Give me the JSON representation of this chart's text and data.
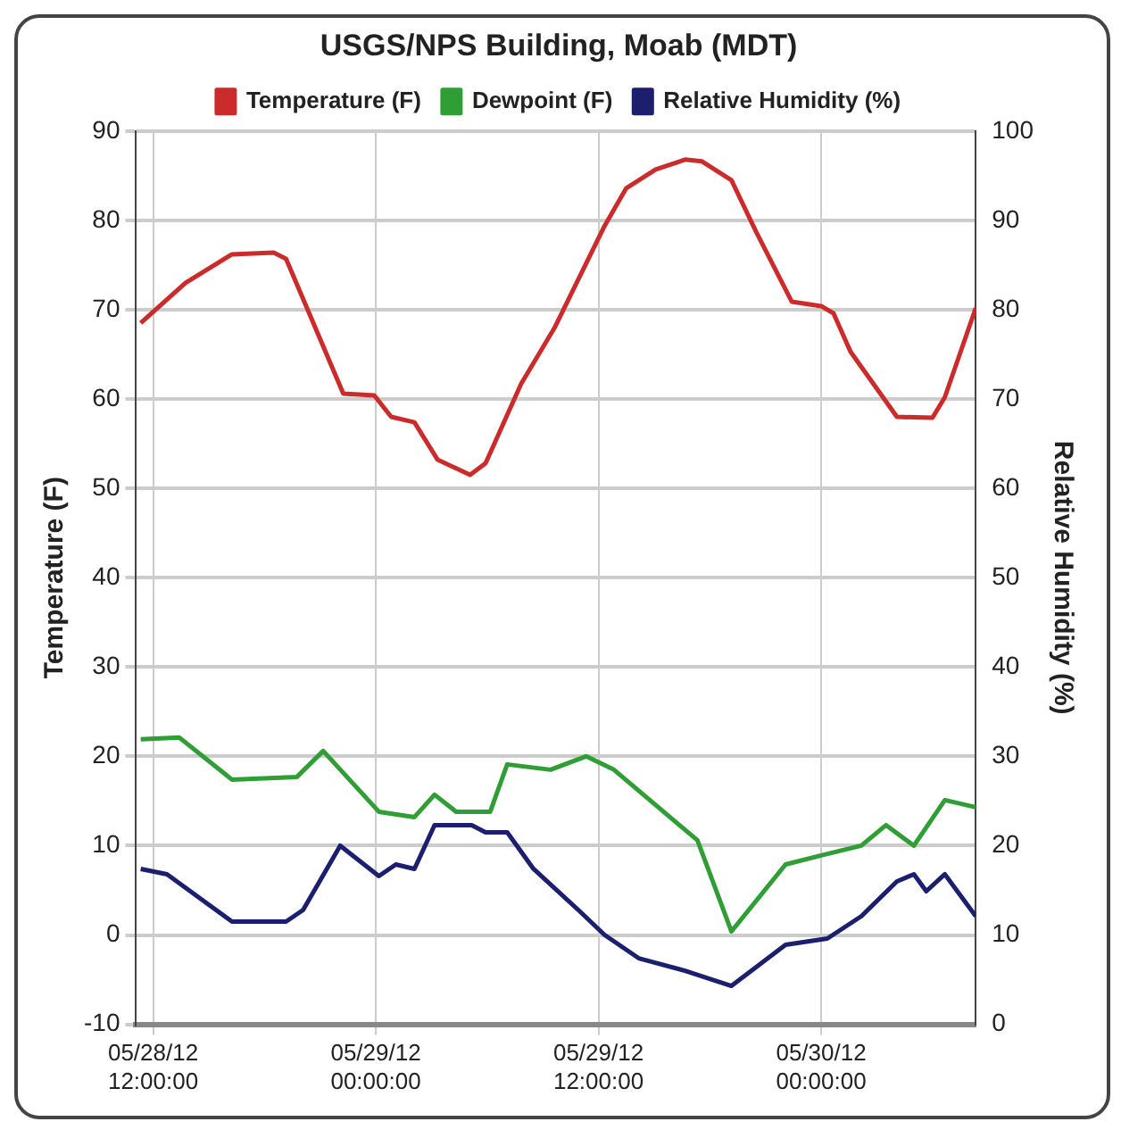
{
  "chart_data": {
    "type": "line",
    "title": "USGS/NPS Building, Moab (MDT)",
    "ylabel": "Temperature (F)",
    "y2label": "Relative Humidity (%)",
    "xlim": [
      "--05-28T11:05",
      "--05-30T08:20"
    ],
    "xticks": [
      {
        "value": "--05-28T12:00",
        "label": "05/28/12 12:00:00"
      },
      {
        "value": "--05-29T00:00",
        "label": "05/29/12 00:00:00"
      },
      {
        "value": "--05-29T12:00",
        "label": "05/29/12 12:00:00"
      },
      {
        "value": "--05-30T00:00",
        "label": "05/30/12 00:00:00"
      }
    ],
    "ylim": [
      -10,
      90
    ],
    "yticks": [
      -10,
      0,
      10,
      20,
      30,
      40,
      50,
      60,
      70,
      80,
      90
    ],
    "y2lim": [
      0,
      100
    ],
    "y2ticks": [
      0,
      10,
      20,
      30,
      40,
      50,
      60,
      70,
      80,
      90,
      100
    ],
    "grid": true,
    "legend": "top",
    "marker": "none",
    "line_style": "solid",
    "series": [
      {
        "name": "Temperature (F)",
        "color": "#cc2b2b",
        "x": [
          "--05-28T11:20",
          "--05-28T13:45",
          "--05-28T16:15",
          "--05-28T18:30",
          "--05-28T19:10",
          "--05-28T22:15",
          "--05-28T23:55",
          "--05-29T00:50",
          "--05-29T02:05",
          "--05-29T03:20",
          "--05-29T05:05",
          "--05-29T05:55",
          "--05-29T07:50",
          "--05-29T09:40",
          "--05-29T12:20",
          "--05-29T13:30",
          "--05-29T15:05",
          "--05-29T16:40",
          "--05-29T17:35",
          "--05-29T19:10",
          "--05-29T20:30",
          "--05-29T22:25",
          "--05-30T00:00",
          "--05-30T00:40",
          "--05-30T01:35",
          "--05-30T04:05",
          "--05-30T06:00",
          "--05-30T06:40",
          "--05-30T08:20"
        ],
        "values": [
          68.5,
          73,
          76.2,
          76.4,
          75.7,
          60.6,
          60.4,
          58,
          57.4,
          53.2,
          51.5,
          52.8,
          61.7,
          68.1,
          79.4,
          83.6,
          85.7,
          86.8,
          86.6,
          84.5,
          78.7,
          70.9,
          70.4,
          69.6,
          65.3,
          58,
          57.9,
          60.2,
          70.2
        ]
      },
      {
        "name": "Dewpoint (F)",
        "color": "#2e9e35",
        "x": [
          "--05-28T11:20",
          "--05-28T13:25",
          "--05-28T16:15",
          "--05-28T19:45",
          "--05-28T21:10",
          "--05-29T00:10",
          "--05-29T02:05",
          "--05-29T03:10",
          "--05-29T04:20",
          "--05-29T06:10",
          "--05-29T07:05",
          "--05-29T09:25",
          "--05-29T11:20",
          "--05-29T12:50",
          "--05-29T17:20",
          "--05-29T19:10",
          "--05-29T22:05",
          "--05-30T00:00",
          "--05-30T02:10",
          "--05-30T03:30",
          "--05-30T05:00",
          "--05-30T06:40",
          "--05-30T08:20"
        ],
        "values": [
          21.9,
          22.1,
          17.4,
          17.7,
          20.6,
          13.8,
          13.2,
          15.7,
          13.8,
          13.8,
          19.1,
          18.5,
          20,
          18.5,
          10.6,
          0.4,
          7.9,
          8.9,
          10,
          12.3,
          10,
          15.1,
          14.3
        ]
      },
      {
        "name": "Relative Humidity (%)",
        "color": "#1c1f6e",
        "axis": "y2",
        "x": [
          "--05-28T11:20",
          "--05-28T12:45",
          "--05-28T16:15",
          "--05-28T19:10",
          "--05-28T20:05",
          "--05-28T22:05",
          "--05-29T00:10",
          "--05-29T01:05",
          "--05-29T02:05",
          "--05-29T03:10",
          "--05-29T05:10",
          "--05-29T05:55",
          "--05-29T07:05",
          "--05-29T08:30",
          "--05-29T10:55",
          "--05-29T12:20",
          "--05-29T14:10",
          "--05-29T16:40",
          "--05-29T19:10",
          "--05-29T22:05",
          "--05-30T00:20",
          "--05-30T02:10",
          "--05-30T04:05",
          "--05-30T05:00",
          "--05-30T05:40",
          "--05-30T06:40",
          "--05-30T08:20"
        ],
        "values": [
          17.4,
          16.8,
          11.5,
          11.5,
          12.8,
          20,
          16.6,
          17.9,
          17.4,
          22.3,
          22.3,
          21.5,
          21.5,
          17.4,
          12.8,
          10,
          7.4,
          6,
          4.3,
          8.9,
          9.6,
          12.1,
          16,
          16.8,
          14.9,
          16.8,
          12.1
        ]
      }
    ]
  }
}
